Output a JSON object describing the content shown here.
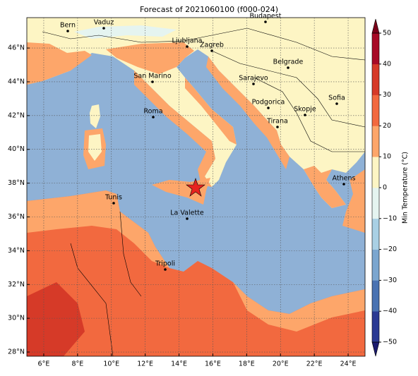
{
  "title": "Forecast of 2021060100 (f000-024)",
  "map": {
    "xticks": [
      {
        "value": 6,
        "label": "6°E"
      },
      {
        "value": 8,
        "label": "8°E"
      },
      {
        "value": 10,
        "label": "10°E"
      },
      {
        "value": 12,
        "label": "12°E"
      },
      {
        "value": 14,
        "label": "14°E"
      },
      {
        "value": 16,
        "label": "16°E"
      },
      {
        "value": 18,
        "label": "18°E"
      },
      {
        "value": 20,
        "label": "20°E"
      },
      {
        "value": 22,
        "label": "22°E"
      },
      {
        "value": 24,
        "label": "24°E"
      }
    ],
    "yticks": [
      {
        "value": 28,
        "label": "28°N"
      },
      {
        "value": 30,
        "label": "30°N"
      },
      {
        "value": 32,
        "label": "32°N"
      },
      {
        "value": 34,
        "label": "34°N"
      },
      {
        "value": 36,
        "label": "36°N"
      },
      {
        "value": 38,
        "label": "38°N"
      },
      {
        "value": 40,
        "label": "40°N"
      },
      {
        "value": 42,
        "label": "42°N"
      },
      {
        "value": 44,
        "label": "44°N"
      },
      {
        "value": 46,
        "label": "46°N"
      }
    ],
    "xlim": [
      5,
      25
    ],
    "ylim": [
      27.75,
      47.8
    ],
    "grid": true,
    "cities": [
      "Bern",
      "Vaduz",
      "Budapest",
      "Ljubljana",
      "Zagreb",
      "Belgrade",
      "San Marino",
      "Sarajevo",
      "Sofia",
      "Podgorica",
      "Skopje",
      "Roma",
      "Tirana",
      "Athens",
      "Tunis",
      "La Valette",
      "Tripoli"
    ]
  },
  "colorbar": {
    "label": "Min Temperature (°C)",
    "range": [
      -50,
      50
    ],
    "ticks": [
      {
        "value": -50,
        "label": "−50"
      },
      {
        "value": -40,
        "label": "−40"
      },
      {
        "value": -30,
        "label": "−30"
      },
      {
        "value": -20,
        "label": "−20"
      },
      {
        "value": -10,
        "label": "−10"
      },
      0,
      10,
      20,
      30,
      40,
      50
    ],
    "colors": [
      "#2b3a93",
      "#4a73b2",
      "#7ba6cf",
      "#a9d0e4",
      "#e5f4f0",
      "#fdf5c4",
      "#fda66a",
      "#f2693f",
      "#d63a28",
      "#a70a26"
    ],
    "extend_colors": [
      "#1a1a6e",
      "#7a0019"
    ]
  }
}
